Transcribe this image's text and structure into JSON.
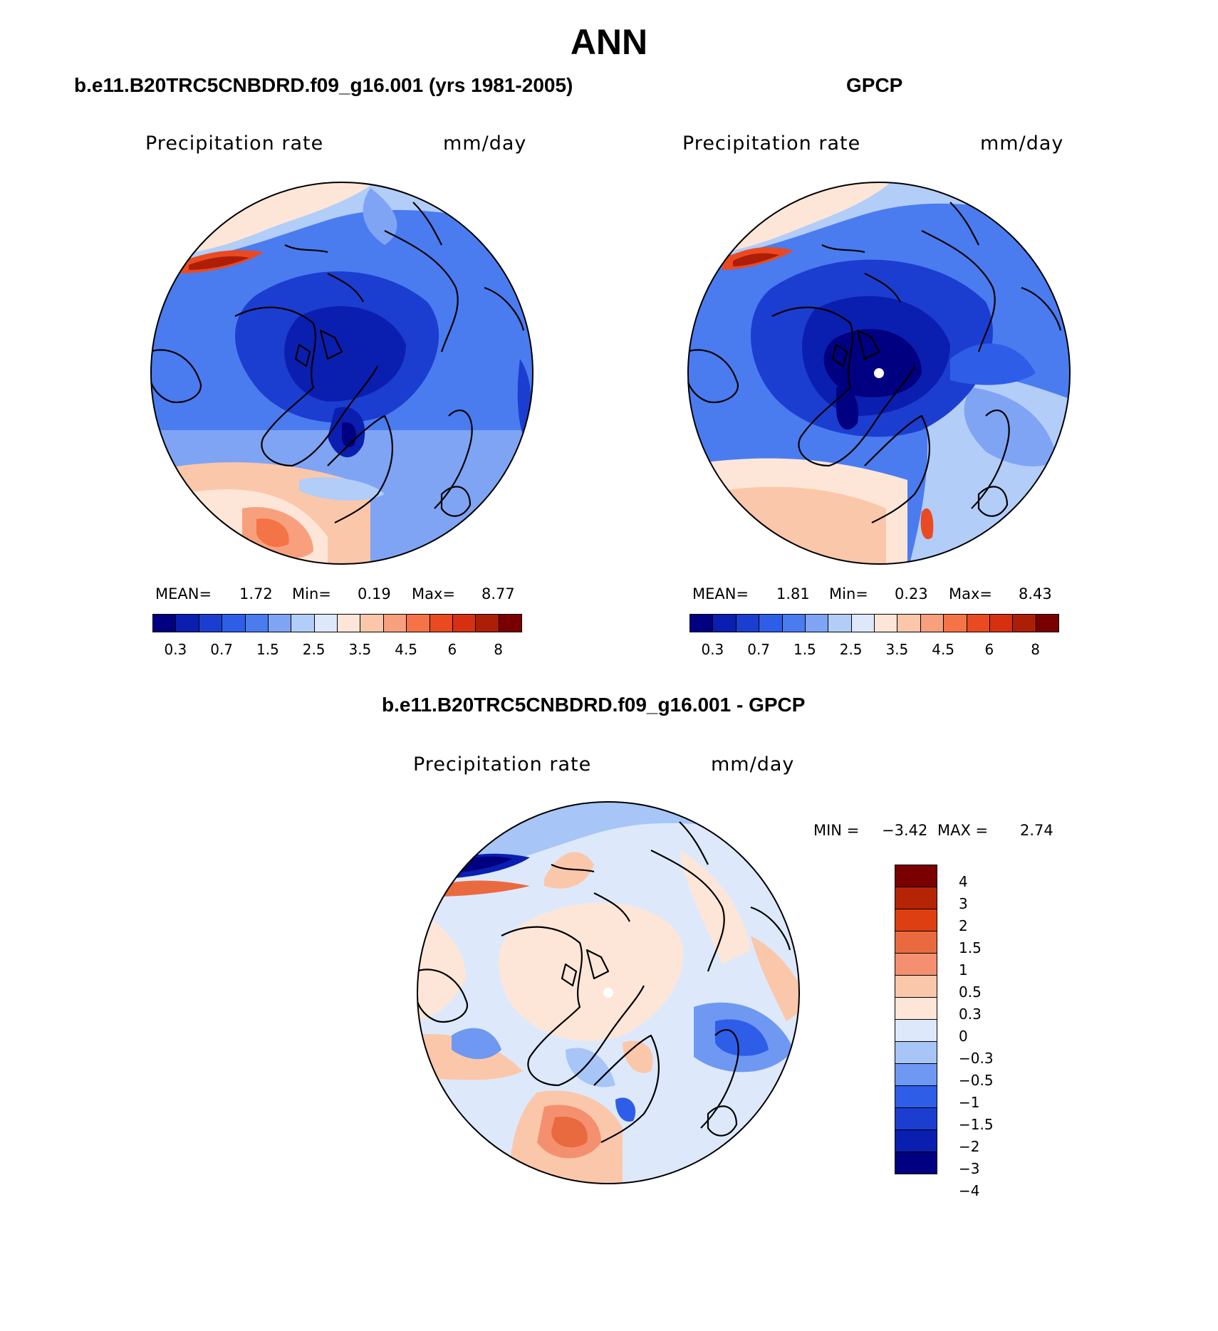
{
  "figure": {
    "season": "ANN"
  },
  "panels": [
    {
      "title": "b.e11.B20TRC5CNBDRD.f09_g16.001 (yrs 1981-2005)",
      "variable": "Precipitation rate",
      "units": "mm/day",
      "stats": {
        "mean_label": "MEAN=",
        "mean": "1.72",
        "min_label": "Min=",
        "min": "0.19",
        "max_label": "Max=",
        "max": "8.77"
      }
    },
    {
      "title": "GPCP",
      "variable": "Precipitation rate",
      "units": "mm/day",
      "stats": {
        "mean_label": "MEAN=",
        "mean": "1.81",
        "min_label": "Min=",
        "min": "0.23",
        "max_label": "Max=",
        "max": "8.43"
      }
    },
    {
      "title": "b.e11.B20TRC5CNBDRD.f09_g16.001 - GPCP",
      "variable": "Precipitation rate",
      "units": "mm/day",
      "stats": {
        "min_label": "MIN =",
        "min": "−3.42",
        "max_label": "MAX =",
        "max": "2.74"
      }
    }
  ],
  "colorbar_abs": {
    "colors": [
      "#000080",
      "#0a1fb0",
      "#1c3ed0",
      "#2e5ee8",
      "#4a7cf0",
      "#7fa4f4",
      "#b2cdf8",
      "#dde9fb",
      "#fde6d8",
      "#fbc7aa",
      "#f8a07e",
      "#f47347",
      "#ea4a22",
      "#d63010",
      "#ad1e06",
      "#7a0000"
    ],
    "labels": [
      "0.3",
      "0.7",
      "1.5",
      "2.5",
      "3.5",
      "4.5",
      "6",
      "8"
    ]
  },
  "colorbar_diff": {
    "colors": [
      "#000080",
      "#0a1fb0",
      "#1c3ed0",
      "#2e5ee8",
      "#6e98f2",
      "#a7c5f7",
      "#dde9fb",
      "#fde6d8",
      "#fbc7aa",
      "#f49070",
      "#ea6a3f",
      "#dd3f12",
      "#b62406",
      "#7a0000"
    ],
    "labels": [
      "4",
      "3",
      "2",
      "1.5",
      "1",
      "0.5",
      "0.3",
      "0",
      "−0.3",
      "−0.5",
      "−1",
      "−1.5",
      "−2",
      "−3",
      "−4"
    ]
  }
}
